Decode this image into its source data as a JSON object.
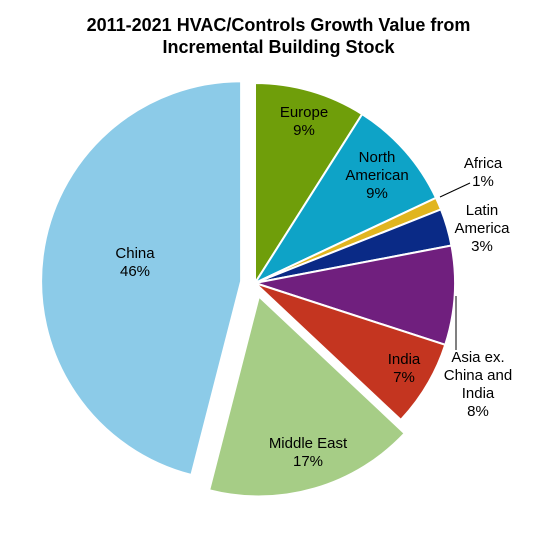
{
  "chart_data": {
    "type": "pie",
    "title_lines": [
      "2011-2021 HVAC/Controls Growth Value from",
      "Incremental Building Stock"
    ],
    "units": "%",
    "slices": [
      {
        "name": "Europe",
        "label_lines": [
          "Europe"
        ],
        "value": 9,
        "value_label": "9%",
        "color": "#6f9e0a",
        "exploded": false
      },
      {
        "name": "North American",
        "label_lines": [
          "North",
          "American"
        ],
        "value": 9,
        "value_label": "9%",
        "color": "#0ea3c7",
        "exploded": false
      },
      {
        "name": "Africa",
        "label_lines": [
          "Africa"
        ],
        "value": 1,
        "value_label": "1%",
        "color": "#e1b51f",
        "exploded": false
      },
      {
        "name": "Latin America",
        "label_lines": [
          "Latin",
          "America"
        ],
        "value": 3,
        "value_label": "3%",
        "color": "#0a2a86",
        "exploded": false
      },
      {
        "name": "Asia ex. China and India",
        "label_lines": [
          "Asia ex.",
          "China and",
          "India"
        ],
        "value": 8,
        "value_label": "8%",
        "color": "#701f7e",
        "exploded": false
      },
      {
        "name": "India",
        "label_lines": [
          "India"
        ],
        "value": 7,
        "value_label": "7%",
        "color": "#c43520",
        "exploded": false
      },
      {
        "name": "Middle East",
        "label_lines": [
          "Middle East"
        ],
        "value": 17,
        "value_label": "17%",
        "color": "#a6cd86",
        "exploded": true
      },
      {
        "name": "China",
        "label_lines": [
          "China"
        ],
        "value": 46,
        "value_label": "46%",
        "color": "#8ccbe8",
        "exploded": true
      }
    ]
  }
}
